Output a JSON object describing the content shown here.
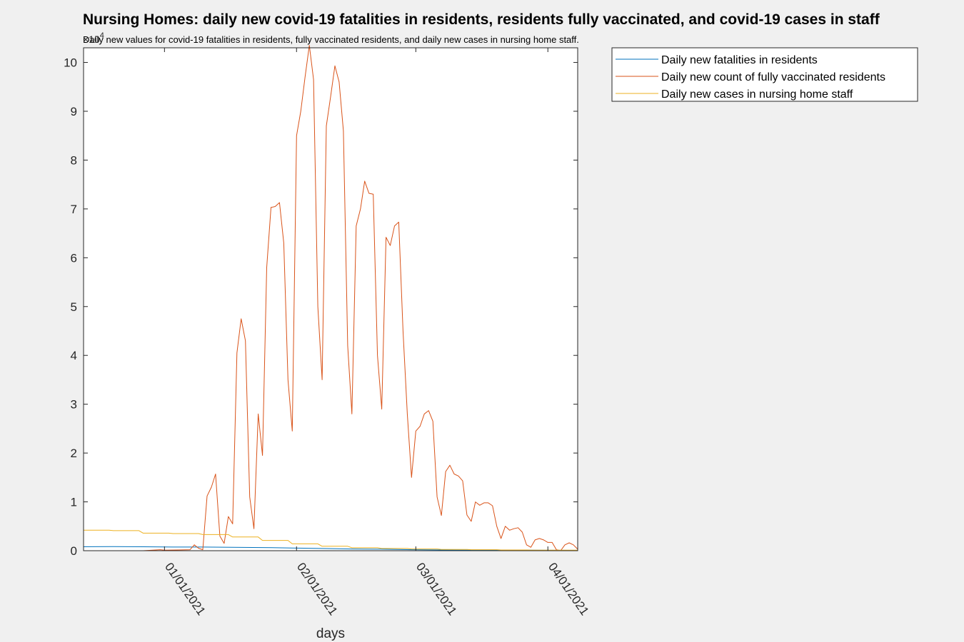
{
  "chart_data": {
    "type": "line",
    "title": "Nursing Homes: daily new covid-19 fatalities in residents, residents fully vaccinated, and covid-19 cases in staff",
    "subtitle": "Daily new values for covid-19 fatalities in residents, fully vaccinated residents, and daily new cases in nursing home staff.",
    "xlabel": "days",
    "ylabel": "",
    "y_exponent_base": "×10",
    "y_exponent_power": "4",
    "x_range": [
      "2020-12-13",
      "2021-04-08"
    ],
    "ylim": [
      0,
      10.3
    ],
    "y_scale_factor": 10000,
    "y_ticks": [
      0,
      1,
      2,
      3,
      4,
      5,
      6,
      7,
      8,
      9,
      10
    ],
    "x_ticks": [
      {
        "date": "2021-01-01",
        "label": "01/01/2021"
      },
      {
        "date": "2021-02-01",
        "label": "02/01/2021"
      },
      {
        "date": "2021-03-01",
        "label": "03/01/2021"
      },
      {
        "date": "2021-04-01",
        "label": "04/01/2021"
      }
    ],
    "grid": false,
    "legend_position": "outside-right-top",
    "series": [
      {
        "name": "Daily new fatalities in residents",
        "color": "#0072BD",
        "points": [
          [
            "2020-12-13",
            0.08
          ],
          [
            "2020-12-20",
            0.085
          ],
          [
            "2020-12-27",
            0.08
          ],
          [
            "2021-01-03",
            0.075
          ],
          [
            "2021-01-10",
            0.075
          ],
          [
            "2021-01-17",
            0.07
          ],
          [
            "2021-01-24",
            0.065
          ],
          [
            "2021-01-31",
            0.055
          ],
          [
            "2021-02-07",
            0.045
          ],
          [
            "2021-02-14",
            0.035
          ],
          [
            "2021-02-21",
            0.03
          ],
          [
            "2021-02-28",
            0.02
          ],
          [
            "2021-03-07",
            0.015
          ],
          [
            "2021-03-14",
            0.012
          ],
          [
            "2021-03-21",
            0.01
          ],
          [
            "2021-03-28",
            0.01
          ],
          [
            "2021-04-08",
            0.008
          ]
        ]
      },
      {
        "name": "Daily new count of fully vaccinated residents",
        "color": "#D95319",
        "points": [
          [
            "2020-12-13",
            0.0
          ],
          [
            "2020-12-20",
            0.0
          ],
          [
            "2020-12-27",
            0.0
          ],
          [
            "2020-12-31",
            0.02
          ],
          [
            "2021-01-01",
            0.01
          ],
          [
            "2021-01-07",
            0.02
          ],
          [
            "2021-01-08",
            0.12
          ],
          [
            "2021-01-09",
            0.05
          ],
          [
            "2021-01-10",
            0.02
          ],
          [
            "2021-01-11",
            1.12
          ],
          [
            "2021-01-12",
            1.3
          ],
          [
            "2021-01-13",
            1.57
          ],
          [
            "2021-01-14",
            0.3
          ],
          [
            "2021-01-15",
            0.15
          ],
          [
            "2021-01-16",
            0.7
          ],
          [
            "2021-01-17",
            0.55
          ],
          [
            "2021-01-18",
            4.05
          ],
          [
            "2021-01-19",
            4.75
          ],
          [
            "2021-01-20",
            4.3
          ],
          [
            "2021-01-21",
            1.1
          ],
          [
            "2021-01-22",
            0.45
          ],
          [
            "2021-01-23",
            2.8
          ],
          [
            "2021-01-24",
            1.95
          ],
          [
            "2021-01-25",
            5.8
          ],
          [
            "2021-01-26",
            7.03
          ],
          [
            "2021-01-27",
            7.05
          ],
          [
            "2021-01-28",
            7.13
          ],
          [
            "2021-01-29",
            6.3
          ],
          [
            "2021-01-30",
            3.5
          ],
          [
            "2021-01-31",
            2.45
          ],
          [
            "2021-02-01",
            8.5
          ],
          [
            "2021-02-02",
            9.0
          ],
          [
            "2021-02-03",
            9.7
          ],
          [
            "2021-02-04",
            10.35
          ],
          [
            "2021-02-05",
            9.65
          ],
          [
            "2021-02-06",
            5.0
          ],
          [
            "2021-02-07",
            3.5
          ],
          [
            "2021-02-08",
            8.7
          ],
          [
            "2021-02-09",
            9.3
          ],
          [
            "2021-02-10",
            9.93
          ],
          [
            "2021-02-11",
            9.6
          ],
          [
            "2021-02-12",
            8.6
          ],
          [
            "2021-02-13",
            4.2
          ],
          [
            "2021-02-14",
            2.8
          ],
          [
            "2021-02-15",
            6.65
          ],
          [
            "2021-02-16",
            7.0
          ],
          [
            "2021-02-17",
            7.57
          ],
          [
            "2021-02-18",
            7.32
          ],
          [
            "2021-02-19",
            7.3
          ],
          [
            "2021-02-20",
            4.0
          ],
          [
            "2021-02-21",
            2.9
          ],
          [
            "2021-02-22",
            6.42
          ],
          [
            "2021-02-23",
            6.25
          ],
          [
            "2021-02-24",
            6.65
          ],
          [
            "2021-02-25",
            6.73
          ],
          [
            "2021-02-26",
            4.5
          ],
          [
            "2021-02-27",
            2.8
          ],
          [
            "2021-02-28",
            1.5
          ],
          [
            "2021-03-01",
            2.45
          ],
          [
            "2021-03-02",
            2.55
          ],
          [
            "2021-03-03",
            2.8
          ],
          [
            "2021-03-04",
            2.87
          ],
          [
            "2021-03-05",
            2.65
          ],
          [
            "2021-03-06",
            1.1
          ],
          [
            "2021-03-07",
            0.72
          ],
          [
            "2021-03-08",
            1.62
          ],
          [
            "2021-03-09",
            1.75
          ],
          [
            "2021-03-10",
            1.57
          ],
          [
            "2021-03-11",
            1.53
          ],
          [
            "2021-03-12",
            1.43
          ],
          [
            "2021-03-13",
            0.73
          ],
          [
            "2021-03-14",
            0.6
          ],
          [
            "2021-03-15",
            1.0
          ],
          [
            "2021-03-16",
            0.93
          ],
          [
            "2021-03-17",
            0.98
          ],
          [
            "2021-03-18",
            0.98
          ],
          [
            "2021-03-19",
            0.92
          ],
          [
            "2021-03-20",
            0.5
          ],
          [
            "2021-03-21",
            0.25
          ],
          [
            "2021-03-22",
            0.5
          ],
          [
            "2021-03-23",
            0.42
          ],
          [
            "2021-03-24",
            0.45
          ],
          [
            "2021-03-25",
            0.47
          ],
          [
            "2021-03-26",
            0.38
          ],
          [
            "2021-03-27",
            0.12
          ],
          [
            "2021-03-28",
            0.07
          ],
          [
            "2021-03-29",
            0.22
          ],
          [
            "2021-03-30",
            0.25
          ],
          [
            "2021-03-31",
            0.22
          ],
          [
            "2021-04-01",
            0.17
          ],
          [
            "2021-04-02",
            0.17
          ],
          [
            "2021-04-03",
            0.02
          ],
          [
            "2021-04-04",
            0.0
          ],
          [
            "2021-04-05",
            0.12
          ],
          [
            "2021-04-06",
            0.16
          ],
          [
            "2021-04-07",
            0.12
          ],
          [
            "2021-04-08",
            0.03
          ]
        ]
      },
      {
        "name": "Daily new cases in nursing home staff",
        "color": "#EDB120",
        "points": [
          [
            "2020-12-13",
            0.42
          ],
          [
            "2020-12-19",
            0.42
          ],
          [
            "2020-12-20",
            0.41
          ],
          [
            "2020-12-26",
            0.41
          ],
          [
            "2020-12-27",
            0.36
          ],
          [
            "2021-01-02",
            0.36
          ],
          [
            "2021-01-03",
            0.35
          ],
          [
            "2021-01-09",
            0.35
          ],
          [
            "2021-01-10",
            0.33
          ],
          [
            "2021-01-16",
            0.33
          ],
          [
            "2021-01-17",
            0.28
          ],
          [
            "2021-01-23",
            0.28
          ],
          [
            "2021-01-24",
            0.21
          ],
          [
            "2021-01-30",
            0.21
          ],
          [
            "2021-01-31",
            0.14
          ],
          [
            "2021-02-06",
            0.14
          ],
          [
            "2021-02-07",
            0.09
          ],
          [
            "2021-02-13",
            0.09
          ],
          [
            "2021-02-14",
            0.06
          ],
          [
            "2021-02-20",
            0.06
          ],
          [
            "2021-02-21",
            0.045
          ],
          [
            "2021-02-27",
            0.045
          ],
          [
            "2021-02-28",
            0.035
          ],
          [
            "2021-03-06",
            0.035
          ],
          [
            "2021-03-07",
            0.025
          ],
          [
            "2021-03-13",
            0.025
          ],
          [
            "2021-03-14",
            0.02
          ],
          [
            "2021-03-20",
            0.02
          ],
          [
            "2021-03-21",
            0.015
          ],
          [
            "2021-03-27",
            0.015
          ],
          [
            "2021-03-28",
            0.01
          ],
          [
            "2021-04-08",
            0.01
          ]
        ]
      }
    ]
  }
}
